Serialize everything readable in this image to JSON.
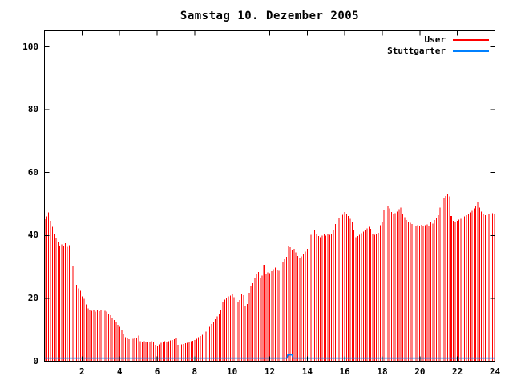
{
  "title": "Samstag 10. Dezember 2005",
  "legend": [
    {
      "label": "User",
      "color": "#ff0000"
    },
    {
      "label": "Stuttgarter",
      "color": "#0080ff"
    }
  ],
  "colors": {
    "axis": "#000000",
    "background": "#ffffff",
    "user": "#ff0000",
    "stuttgarter": "#0080ff"
  },
  "chart_data": {
    "type": "bar",
    "title": "Samstag 10. Dezember 2005",
    "xlabel": "",
    "ylabel": "",
    "xlim": [
      0,
      24
    ],
    "ylim": [
      0,
      105
    ],
    "grid": false,
    "legend_position": "top-right-inside",
    "x_ticks": [
      2,
      4,
      6,
      8,
      10,
      12,
      14,
      16,
      18,
      20,
      22,
      24
    ],
    "y_ticks": [
      0,
      20,
      40,
      60,
      80,
      100
    ],
    "x_unit": "hour",
    "x_step_hours": 0.1,
    "series": [
      {
        "name": "User",
        "style": "impulses",
        "color": "#ff0000",
        "wide_indices": [
          20,
          70,
          117,
          217
        ],
        "values": [
          45.2,
          46.1,
          47.3,
          44.6,
          42.8,
          40.6,
          39.2,
          37.8,
          36.6,
          37.2,
          36.8,
          37.5,
          36.4,
          36.9,
          31.2,
          30.1,
          29.6,
          24.3,
          23.1,
          22.4,
          20.6,
          19.8,
          18.1,
          16.8,
          16.2,
          16.0,
          16.3,
          15.8,
          16.1,
          15.9,
          16.2,
          15.7,
          16.0,
          15.8,
          15.2,
          14.6,
          13.8,
          13.1,
          12.4,
          11.6,
          10.9,
          9.8,
          8.7,
          7.6,
          7.2,
          7.0,
          7.3,
          7.1,
          7.2,
          7.4,
          8.1,
          6.4,
          6.1,
          6.3,
          6.0,
          6.2,
          6.1,
          6.3,
          6.0,
          5.2,
          4.7,
          5.4,
          5.8,
          6.1,
          6.3,
          6.2,
          6.4,
          6.6,
          6.8,
          7.0,
          7.4,
          5.2,
          5.0,
          5.3,
          5.5,
          5.7,
          5.9,
          6.1,
          6.3,
          6.5,
          6.7,
          7.1,
          7.6,
          8.0,
          8.4,
          8.8,
          9.4,
          10.2,
          11.0,
          11.8,
          12.6,
          13.4,
          14.2,
          15.0,
          16.4,
          18.8,
          19.6,
          20.1,
          20.6,
          20.9,
          21.2,
          20.4,
          19.2,
          18.8,
          19.5,
          21.4,
          21.0,
          17.6,
          18.2,
          21.8,
          23.9,
          24.8,
          26.3,
          27.8,
          28.4,
          26.6,
          27.2,
          30.6,
          27.9,
          28.3,
          28.0,
          28.6,
          29.3,
          29.8,
          29.1,
          28.8,
          29.4,
          31.6,
          32.4,
          33.2,
          36.8,
          36.2,
          35.4,
          35.8,
          34.6,
          33.4,
          33.0,
          33.3,
          34.1,
          34.9,
          35.7,
          36.6,
          40.2,
          42.3,
          41.8,
          40.4,
          39.8,
          39.5,
          39.9,
          40.3,
          40.0,
          40.6,
          40.2,
          40.5,
          41.8,
          43.6,
          44.9,
          45.4,
          45.9,
          46.6,
          47.4,
          47.0,
          46.2,
          45.3,
          44.1,
          41.6,
          39.4,
          39.8,
          40.2,
          40.7,
          41.2,
          41.6,
          42.2,
          42.8,
          42.1,
          40.6,
          40.2,
          40.5,
          40.8,
          43.2,
          44.3,
          48.1,
          49.8,
          49.2,
          48.6,
          47.4,
          46.8,
          47.1,
          47.6,
          48.4,
          48.8,
          46.9,
          45.8,
          44.9,
          44.4,
          44.0,
          43.6,
          43.2,
          43.0,
          43.3,
          43.1,
          43.4,
          43.0,
          43.2,
          43.5,
          43.1,
          44.2,
          43.8,
          44.9,
          45.6,
          46.4,
          48.9,
          50.8,
          51.9,
          52.6,
          53.2,
          52.4,
          46.2,
          44.6,
          44.3,
          44.7,
          45.0,
          45.3,
          45.7,
          46.1,
          46.4,
          46.8,
          47.3,
          47.9,
          48.6,
          49.4,
          50.6,
          48.8,
          47.6,
          47.0,
          46.5,
          46.8,
          47.0,
          46.7,
          47.1,
          46.9
        ]
      },
      {
        "name": "Stuttgarter",
        "style": "line",
        "color": "#0080ff",
        "points": [
          [
            0,
            1
          ],
          [
            12.92,
            1
          ],
          [
            12.96,
            2
          ],
          [
            13.2,
            2
          ],
          [
            13.24,
            1
          ],
          [
            24,
            1
          ]
        ]
      }
    ]
  }
}
